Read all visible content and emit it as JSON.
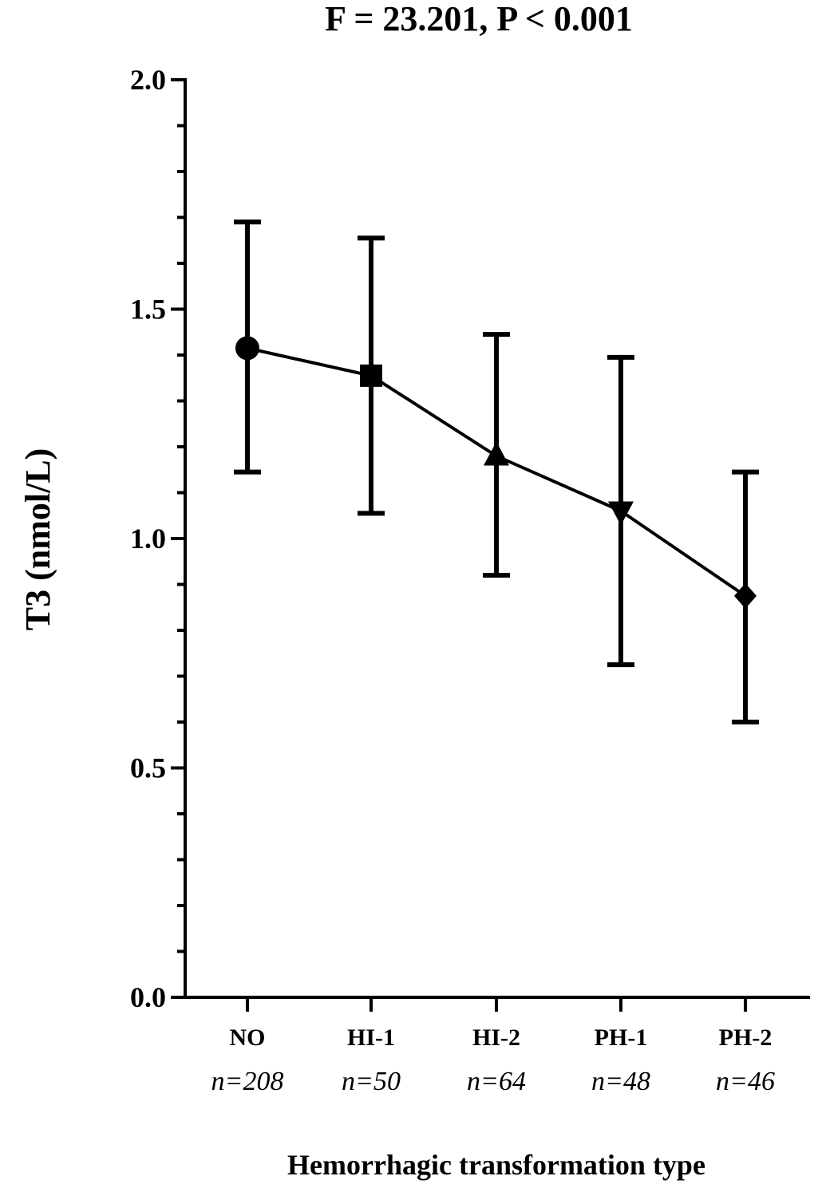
{
  "chart_data": {
    "type": "line",
    "title": "F = 23.201,   P < 0.001",
    "xlabel": "Hemorrhagic transformation type",
    "ylabel": "T3 (nmol/L)",
    "ylim": [
      0.0,
      2.0
    ],
    "y_ticks": [
      "0.0",
      "0.5",
      "1.0",
      "1.5",
      "2.0"
    ],
    "categories": [
      "NO",
      "HI-1",
      "HI-2",
      "PH-1",
      "PH-2"
    ],
    "n_labels": [
      "n=208",
      "n=50",
      "n=64",
      "n=48",
      "n=46"
    ],
    "series": [
      {
        "values": [
          1.415,
          1.355,
          1.18,
          1.06,
          0.875
        ],
        "error_upper": [
          1.69,
          1.655,
          1.445,
          1.395,
          1.145
        ],
        "error_lower": [
          1.145,
          1.055,
          0.92,
          0.725,
          0.6
        ],
        "markers": [
          "circle",
          "square",
          "triangle-up",
          "triangle-down",
          "diamond"
        ],
        "color": "#000000"
      }
    ],
    "grid": false
  }
}
